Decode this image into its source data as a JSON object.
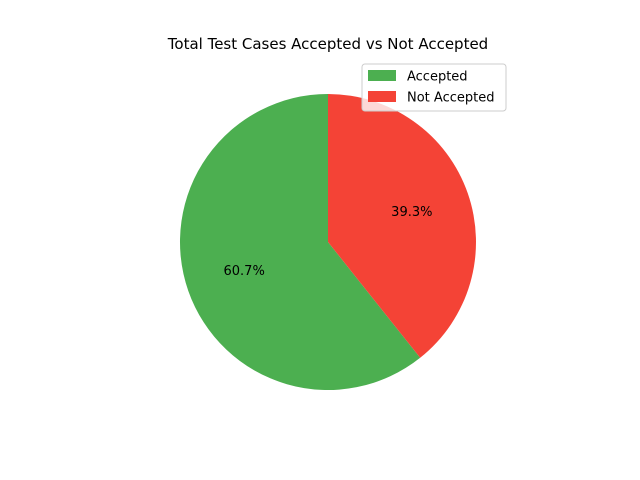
{
  "chart_data": {
    "type": "pie",
    "title": "Total Test Cases Accepted vs Not Accepted",
    "slices": [
      {
        "label": "Accepted",
        "value": 60.7,
        "display": "60.7%",
        "color": "#4caf50"
      },
      {
        "label": "Not Accepted",
        "value": 39.3,
        "display": "39.3%",
        "color": "#f44336"
      }
    ],
    "start_angle_deg": 90,
    "direction": "counterclockwise",
    "legend_position": "upper right"
  }
}
